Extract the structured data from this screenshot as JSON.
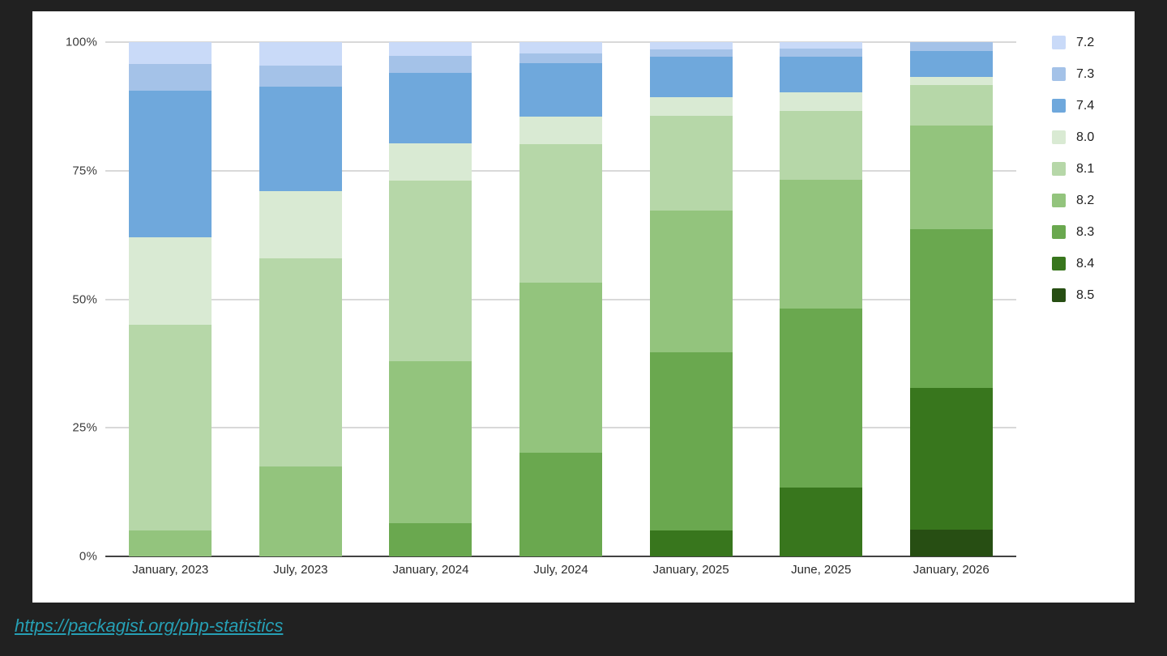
{
  "page": {
    "background_color": "#212121",
    "card_background_color": "#ffffff"
  },
  "footer": {
    "link_text": "https://packagist.org/php-statistics",
    "link_color": "#26a0b5"
  },
  "chart_data": {
    "type": "bar",
    "stacked": true,
    "stack_unit": "percent",
    "title": "",
    "xlabel": "",
    "ylabel": "",
    "ylim": [
      0,
      100
    ],
    "grid": true,
    "legend_position": "right",
    "y_ticks": [
      "0%",
      "25%",
      "50%",
      "75%",
      "100%"
    ],
    "categories": [
      "January, 2023",
      "July, 2023",
      "January, 2024",
      "July, 2024",
      "January, 2025",
      "June, 2025",
      "January, 2026"
    ],
    "series": [
      {
        "name": "7.2",
        "color": "#c9daf8",
        "values": [
          4.3,
          4.5,
          2.7,
          2.2,
          1.4,
          1.3,
          0
        ]
      },
      {
        "name": "7.3",
        "color": "#a4c2e8",
        "values": [
          5.2,
          4.2,
          3.2,
          1.9,
          1.4,
          1.5,
          1.7
        ]
      },
      {
        "name": "7.4",
        "color": "#6fa8dc",
        "values": [
          28.5,
          20.3,
          13.7,
          10.4,
          7.9,
          7.0,
          5.1
        ]
      },
      {
        "name": "8.0",
        "color": "#d9ead3",
        "values": [
          17.0,
          13.0,
          7.3,
          5.3,
          3.7,
          3.5,
          1.5
        ]
      },
      {
        "name": "8.1",
        "color": "#b6d7a8",
        "values": [
          40.0,
          40.5,
          35.1,
          26.9,
          18.4,
          13.4,
          7.9
        ]
      },
      {
        "name": "8.2",
        "color": "#93c47d",
        "values": [
          5.0,
          17.5,
          31.5,
          33.2,
          27.5,
          25.1,
          20.1
        ]
      },
      {
        "name": "8.3",
        "color": "#6aa84f",
        "values": [
          0,
          0,
          6.5,
          20.1,
          34.7,
          34.8,
          31.0
        ]
      },
      {
        "name": "8.4",
        "color": "#38761d",
        "values": [
          0,
          0,
          0,
          0,
          5.0,
          13.4,
          27.5
        ]
      },
      {
        "name": "8.5",
        "color": "#274e13",
        "values": [
          0,
          0,
          0,
          0,
          0,
          0,
          5.2
        ]
      }
    ],
    "stack_order_bottom_to_top": [
      "8.5",
      "8.4",
      "8.3",
      "8.2",
      "8.1",
      "8.0",
      "7.4",
      "7.3",
      "7.2"
    ],
    "axis_colors": {
      "gridline": "#d9d9d9",
      "baseline": "#424242",
      "tick_label": "#3c3c3c"
    }
  }
}
